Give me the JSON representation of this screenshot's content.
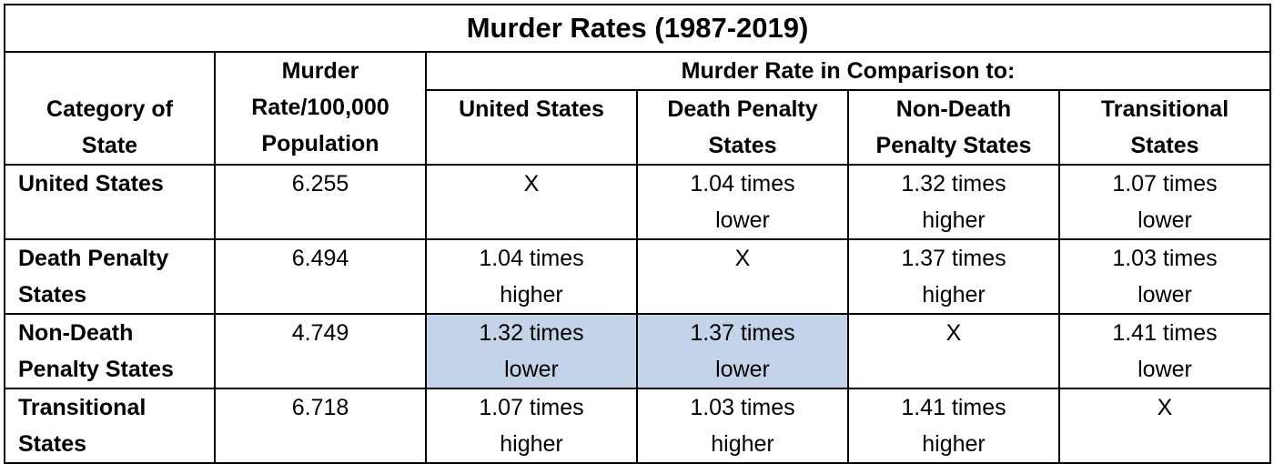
{
  "title": "Murder Rates (1987-2019)",
  "headers": {
    "category": "Category of State",
    "rate": "Murder Rate/100,000 Population",
    "comparison_group": "Murder Rate in Comparison to:",
    "columns": [
      "United States",
      "Death Penalty States",
      "Non-Death Penalty States",
      "Transitional States"
    ]
  },
  "rows": [
    {
      "label": "United States",
      "rate": "6.255",
      "cells": [
        "X",
        "1.04 times lower",
        "1.32 times higher",
        "1.07 times lower"
      ]
    },
    {
      "label": "Death Penalty States",
      "rate": "6.494",
      "cells": [
        "1.04 times higher",
        "X",
        "1.37 times higher",
        "1.03 times lower"
      ]
    },
    {
      "label": "Non-Death Penalty States",
      "rate": "4.749",
      "cells": [
        "1.32 times lower",
        "1.37 times lower",
        "X",
        "1.41 times lower"
      ]
    },
    {
      "label": "Transitional States",
      "rate": "6.718",
      "cells": [
        "1.07 times higher",
        "1.03 times higher",
        "1.41 times higher",
        "X"
      ]
    }
  ],
  "colors": {
    "highlight": "#c5d3ea",
    "border": "#000000"
  },
  "highlighted_cells": [
    {
      "row": 2,
      "col": 0
    },
    {
      "row": 2,
      "col": 1
    }
  ]
}
